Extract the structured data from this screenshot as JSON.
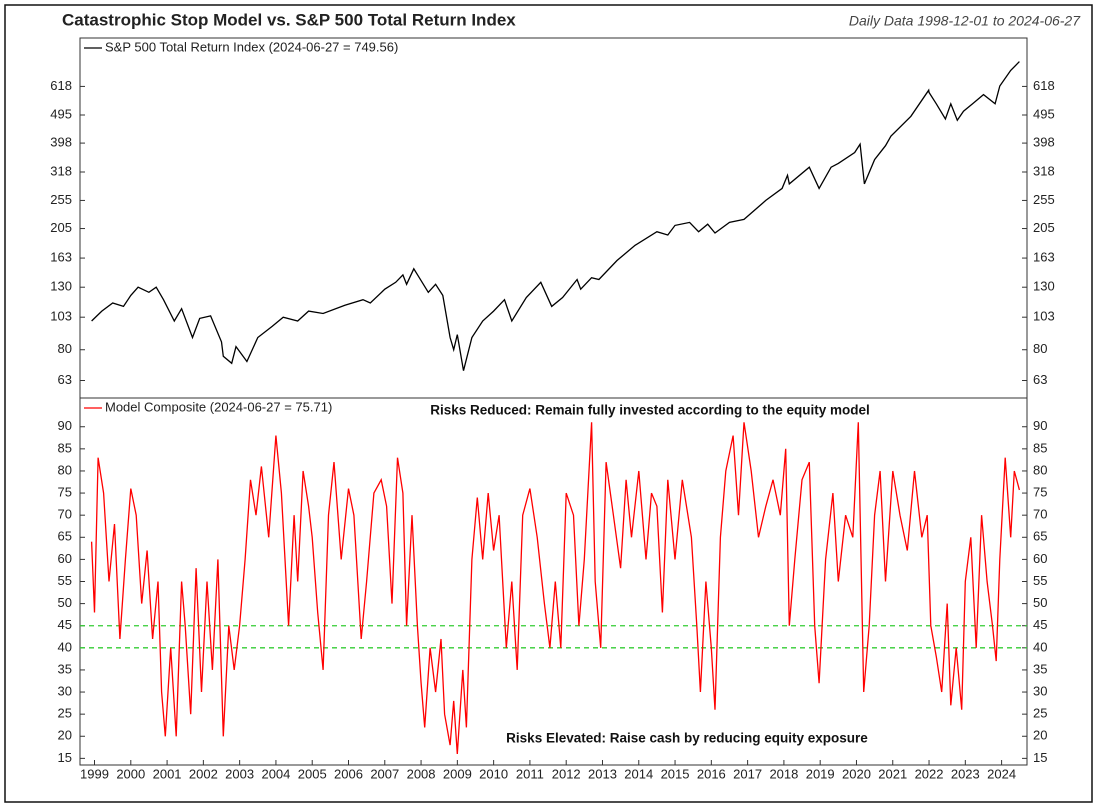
{
  "chart_data": [
    {
      "type": "line",
      "title": "Catastrophic Stop Model vs. S&P 500 Total Return Index",
      "subtitle": "Daily Data 1998-12-01 to 2024-06-27",
      "series_name": "S&P 500 Total Return Index (2024-06-27 = 749.56)",
      "color": "#000000",
      "log": true,
      "x": [
        1998.92,
        1999.2,
        1999.5,
        1999.8,
        2000.0,
        2000.2,
        2000.5,
        2000.7,
        2000.9,
        2001.2,
        2001.4,
        2001.7,
        2001.9,
        2002.2,
        2002.5,
        2002.55,
        2002.78,
        2002.9,
        2003.2,
        2003.5,
        2003.9,
        2004.2,
        2004.6,
        2004.9,
        2005.3,
        2005.9,
        2006.4,
        2006.6,
        2007.0,
        2007.3,
        2007.5,
        2007.6,
        2007.8,
        2007.95,
        2008.2,
        2008.4,
        2008.6,
        2008.8,
        2008.9,
        2009.0,
        2009.17,
        2009.4,
        2009.7,
        2010.0,
        2010.3,
        2010.5,
        2010.9,
        2011.3,
        2011.6,
        2011.9,
        2012.3,
        2012.4,
        2012.7,
        2012.9,
        2013.4,
        2013.9,
        2014.5,
        2014.8,
        2015.0,
        2015.4,
        2015.65,
        2015.9,
        2016.1,
        2016.5,
        2016.9,
        2017.5,
        2017.95,
        2018.1,
        2018.15,
        2018.7,
        2018.97,
        2019.3,
        2019.5,
        2019.95,
        2020.1,
        2020.22,
        2020.5,
        2020.8,
        2020.95,
        2021.5,
        2021.99,
        2022.0,
        2022.2,
        2022.45,
        2022.6,
        2022.78,
        2022.95,
        2023.2,
        2023.5,
        2023.82,
        2023.95,
        2024.25,
        2024.49
      ],
      "values": [
        100,
        108,
        115,
        112,
        122,
        130,
        125,
        130,
        118,
        100,
        110,
        88,
        102,
        104,
        85,
        76,
        72,
        82,
        73,
        88,
        96,
        103,
        100,
        108,
        106,
        113,
        118,
        115,
        128,
        135,
        143,
        133,
        150,
        140,
        125,
        133,
        122,
        88,
        80,
        90,
        68,
        88,
        100,
        108,
        118,
        100,
        120,
        135,
        112,
        120,
        138,
        128,
        140,
        138,
        160,
        180,
        200,
        195,
        210,
        215,
        200,
        212,
        198,
        215,
        220,
        255,
        280,
        310,
        290,
        330,
        280,
        330,
        340,
        370,
        395,
        290,
        350,
        390,
        420,
        490,
        600,
        590,
        540,
        480,
        540,
        475,
        510,
        540,
        580,
        540,
        620,
        700,
        749.56
      ],
      "xlim": [
        1998.6,
        2024.7
      ],
      "ylim": [
        55,
        900
      ],
      "yticks": [
        63,
        80,
        103,
        130,
        163,
        205,
        255,
        318,
        398,
        495,
        618
      ]
    },
    {
      "type": "line",
      "series_name": "Model Composite (2024-06-27 = 75.71)",
      "color": "#ff0000",
      "annotations": [
        "Risks Reduced: Remain fully invested according to the equity model",
        "Risks Elevated: Raise cash by reducing equity exposure"
      ],
      "threshold_lines": [
        40,
        45
      ],
      "threshold_color": "#33cc33",
      "x": [
        1998.92,
        1999.0,
        1999.1,
        1999.25,
        1999.4,
        1999.55,
        1999.7,
        1999.85,
        2000.0,
        2000.15,
        2000.3,
        2000.45,
        2000.6,
        2000.75,
        2000.85,
        2000.95,
        2001.1,
        2001.25,
        2001.4,
        2001.5,
        2001.65,
        2001.8,
        2001.95,
        2002.1,
        2002.25,
        2002.4,
        2002.55,
        2002.7,
        2002.85,
        2003.0,
        2003.15,
        2003.3,
        2003.45,
        2003.6,
        2003.8,
        2004.0,
        2004.15,
        2004.35,
        2004.5,
        2004.6,
        2004.75,
        2004.9,
        2005.0,
        2005.15,
        2005.3,
        2005.45,
        2005.6,
        2005.8,
        2006.0,
        2006.15,
        2006.35,
        2006.5,
        2006.7,
        2006.9,
        2007.05,
        2007.2,
        2007.35,
        2007.5,
        2007.6,
        2007.75,
        2007.9,
        2008.0,
        2008.1,
        2008.25,
        2008.4,
        2008.55,
        2008.65,
        2008.8,
        2008.9,
        2009.0,
        2009.15,
        2009.25,
        2009.4,
        2009.55,
        2009.7,
        2009.85,
        2010.0,
        2010.15,
        2010.35,
        2010.5,
        2010.65,
        2010.8,
        2011.0,
        2011.2,
        2011.4,
        2011.55,
        2011.7,
        2011.85,
        2012.0,
        2012.2,
        2012.35,
        2012.5,
        2012.7,
        2012.8,
        2012.95,
        2013.1,
        2013.3,
        2013.5,
        2013.65,
        2013.8,
        2014.0,
        2014.2,
        2014.35,
        2014.5,
        2014.65,
        2014.8,
        2015.0,
        2015.2,
        2015.45,
        2015.6,
        2015.7,
        2015.85,
        2016.0,
        2016.1,
        2016.25,
        2016.4,
        2016.6,
        2016.75,
        2016.9,
        2017.1,
        2017.3,
        2017.5,
        2017.7,
        2017.9,
        2018.05,
        2018.15,
        2018.3,
        2018.5,
        2018.7,
        2018.85,
        2018.97,
        2019.15,
        2019.35,
        2019.5,
        2019.7,
        2019.9,
        2020.05,
        2020.2,
        2020.35,
        2020.5,
        2020.65,
        2020.8,
        2021.0,
        2021.2,
        2021.4,
        2021.6,
        2021.8,
        2021.95,
        2022.05,
        2022.2,
        2022.35,
        2022.5,
        2022.6,
        2022.75,
        2022.9,
        2023.0,
        2023.15,
        2023.3,
        2023.45,
        2023.6,
        2023.75,
        2023.85,
        2023.95,
        2024.1,
        2024.25,
        2024.35,
        2024.49
      ],
      "values": [
        64,
        48,
        83,
        75,
        55,
        68,
        42,
        60,
        76,
        70,
        50,
        62,
        42,
        55,
        30,
        20,
        40,
        20,
        55,
        45,
        25,
        58,
        30,
        55,
        35,
        60,
        20,
        45,
        35,
        45,
        60,
        78,
        70,
        81,
        65,
        88,
        75,
        45,
        70,
        55,
        80,
        72,
        65,
        48,
        35,
        70,
        82,
        60,
        76,
        70,
        42,
        55,
        75,
        78,
        72,
        50,
        83,
        75,
        45,
        70,
        45,
        32,
        22,
        40,
        30,
        42,
        25,
        18,
        28,
        16,
        35,
        22,
        60,
        74,
        60,
        75,
        62,
        70,
        40,
        55,
        35,
        70,
        76,
        65,
        50,
        40,
        55,
        40,
        75,
        70,
        45,
        60,
        91,
        55,
        40,
        82,
        70,
        58,
        78,
        65,
        80,
        60,
        75,
        72,
        48,
        78,
        60,
        78,
        65,
        45,
        30,
        55,
        40,
        26,
        65,
        80,
        88,
        70,
        91,
        80,
        65,
        72,
        78,
        70,
        85,
        45,
        60,
        78,
        82,
        45,
        32,
        60,
        75,
        55,
        70,
        65,
        91,
        30,
        45,
        70,
        80,
        55,
        80,
        70,
        62,
        80,
        65,
        70,
        45,
        38,
        30,
        50,
        27,
        40,
        26,
        55,
        65,
        40,
        70,
        55,
        45,
        37,
        60,
        83,
        65,
        80,
        75.71
      ],
      "xlim": [
        1998.6,
        2024.7
      ],
      "ylim": [
        13.5,
        96.5
      ],
      "yticks": [
        15,
        20,
        25,
        30,
        35,
        40,
        45,
        50,
        55,
        60,
        65,
        70,
        75,
        80,
        85,
        90
      ],
      "xticks": [
        1999,
        2000,
        2001,
        2002,
        2003,
        2004,
        2005,
        2006,
        2007,
        2008,
        2009,
        2010,
        2011,
        2012,
        2013,
        2014,
        2015,
        2016,
        2017,
        2018,
        2019,
        2020,
        2021,
        2022,
        2023,
        2024
      ]
    }
  ]
}
